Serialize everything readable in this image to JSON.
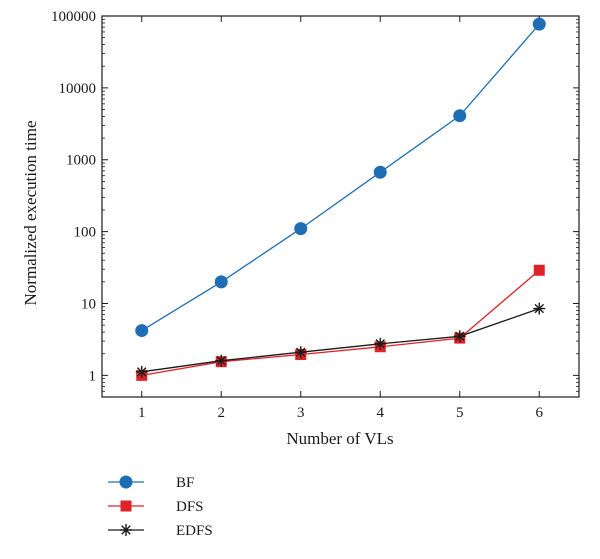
{
  "chart_data": {
    "type": "line",
    "title": "",
    "xlabel": "Number of VLs",
    "ylabel": "Normalized execution time",
    "yscale": "log",
    "xlim": [
      0.5,
      6.5
    ],
    "ylim": [
      0.5,
      100000
    ],
    "grid": false,
    "legend_position": "bottom-left",
    "x": [
      1,
      2,
      3,
      4,
      5,
      6
    ],
    "x_tick_labels": [
      "1",
      "2",
      "3",
      "4",
      "5",
      "6"
    ],
    "y_tick_values": [
      1,
      10,
      100,
      1000,
      10000,
      100000
    ],
    "y_tick_labels": [
      "1",
      "10",
      "100",
      "1000",
      "10000",
      "100000"
    ],
    "series": [
      {
        "name": "BF",
        "values": [
          4.2,
          20,
          110,
          670,
          4100,
          77000
        ],
        "color": "#1f6eb5",
        "marker": "circle"
      },
      {
        "name": "DFS",
        "values": [
          1.0,
          1.55,
          1.95,
          2.5,
          3.3,
          29
        ],
        "color": "#e02228",
        "marker": "square"
      },
      {
        "name": "EDFS",
        "values": [
          1.12,
          1.6,
          2.1,
          2.75,
          3.5,
          8.5
        ],
        "color": "#1a1a1a",
        "marker": "asterisk"
      }
    ]
  }
}
